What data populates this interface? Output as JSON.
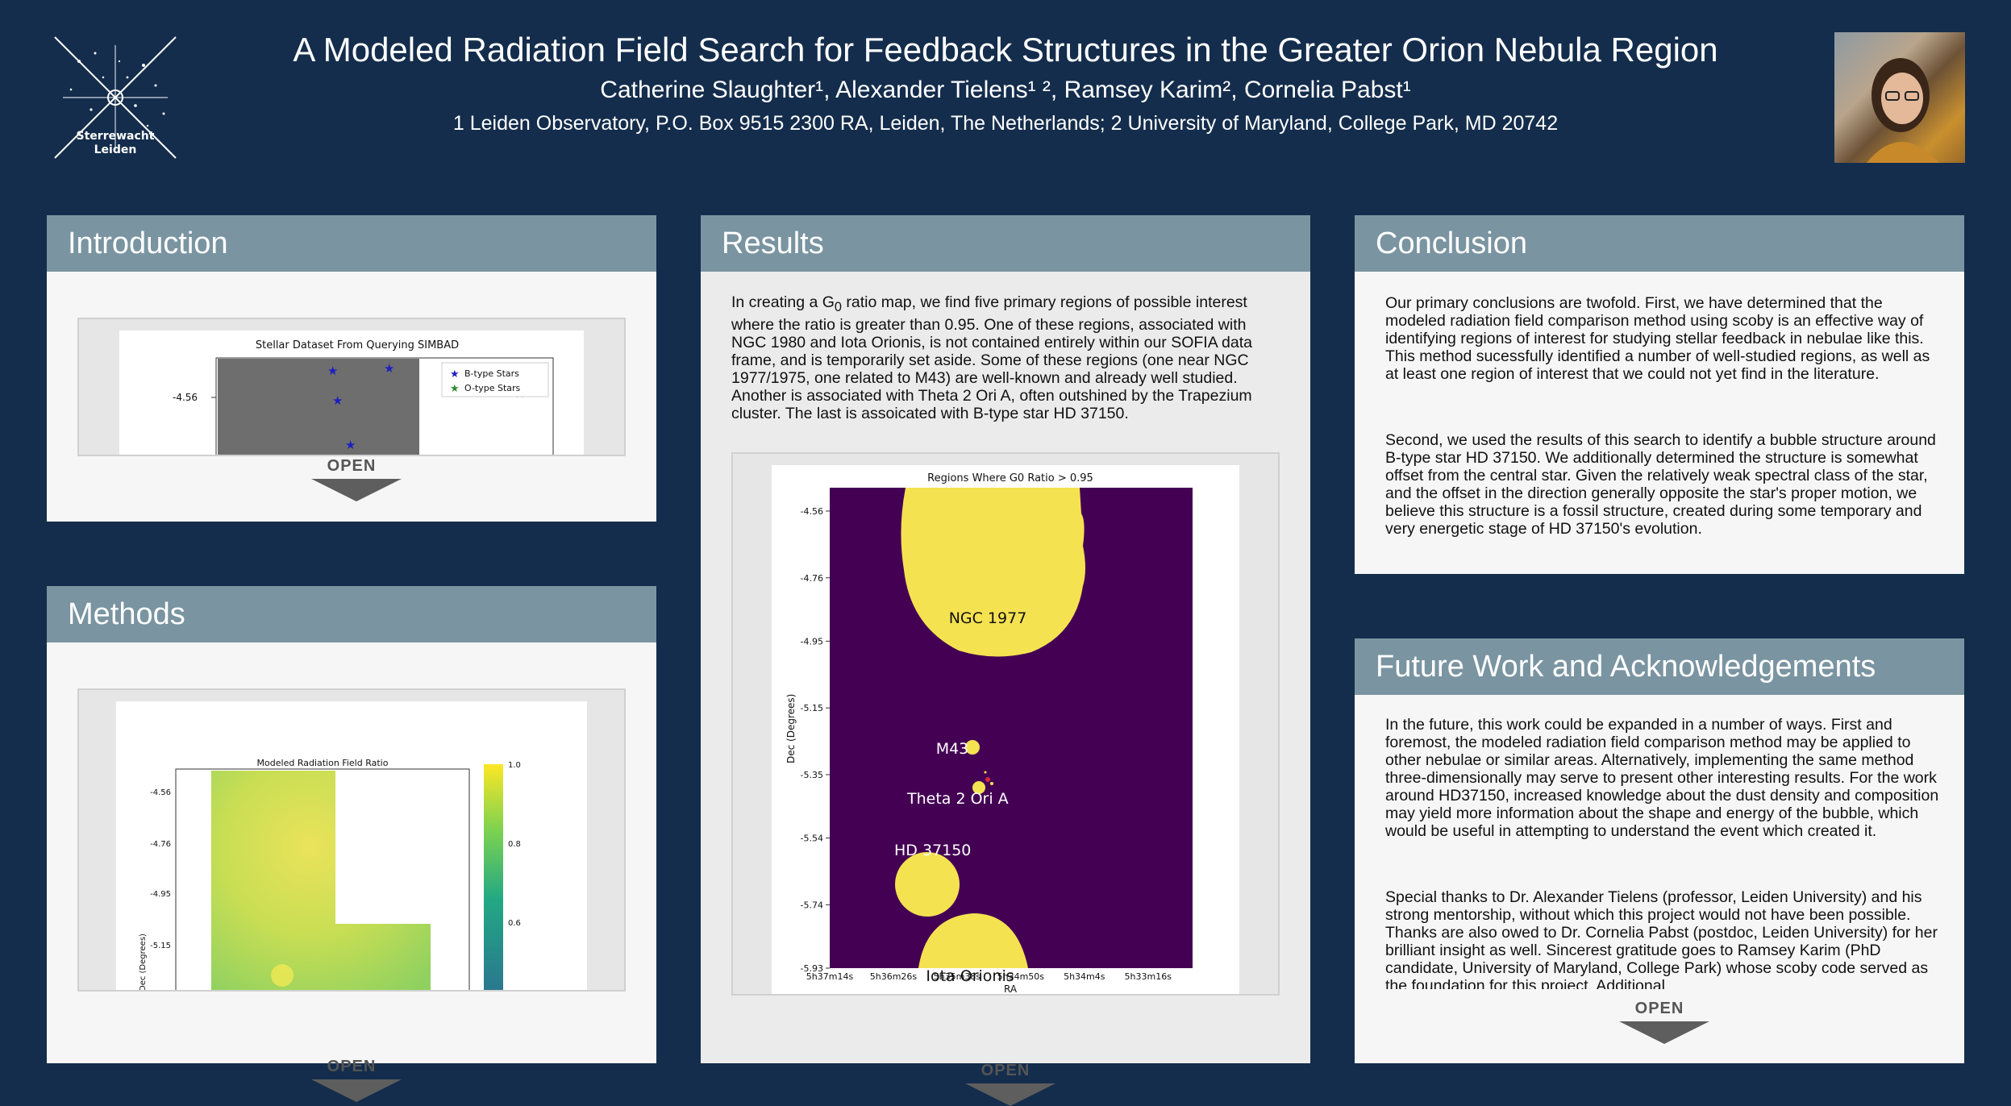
{
  "header": {
    "title": "A Modeled Radiation Field Search for Feedback Structures in the Greater Orion Nebula Region",
    "authors": "Catherine Slaughter¹, Alexander Tielens¹ ², Ramsey Karim², Cornelia Pabst¹",
    "affiliations": "1 Leiden Observatory, P.O. Box 9515 2300 RA, Leiden, The Netherlands; 2 University of Maryland, College Park, MD 20742",
    "logo_text": [
      "Sterrewacht",
      "Leiden"
    ]
  },
  "introduction": {
    "heading": "Introduction",
    "open_label": "OPEN",
    "figure": {
      "title": "Stellar Dataset From Querying SIMBAD",
      "ytick": "-4.56",
      "legend": [
        "B-type Stars",
        "O-type Stars"
      ],
      "colors": {
        "b_star": "#1f1fbf",
        "o_star": "#2e8b2e"
      }
    }
  },
  "methods": {
    "heading": "Methods",
    "open_label": "OPEN",
    "figure": {
      "title": "Modeled Radiation Field Ratio",
      "ylabel": "Dec (Degrees)",
      "yticks": [
        "-4.56",
        "-4.76",
        "-4.95",
        "-5.15"
      ],
      "colorbar_ticks": [
        "1.0",
        "0.8",
        "0.6"
      ]
    }
  },
  "results": {
    "heading": "Results",
    "text_pre": "In creating a G",
    "text_sub": "0",
    "text_post": " ratio map, we find five primary regions of possible interest where the ratio is greater than 0.95. One of these regions, associated with NGC 1980 and Iota Orionis, is not contained entirely within our SOFIA data frame, and is temporarily set aside. Some of these regions (one near NGC 1977/1975, one related to M43) are well-known and already well studied. Another is associated with Theta 2 Ori A, often outshined by the Trapezium cluster. The last is assoicated with B-type star HD 37150.",
    "open_label": "OPEN"
  },
  "chart_data": {
    "type": "heatmap",
    "title": "Regions Where G0 Ratio > 0.95",
    "xlabel": "RA",
    "ylabel": "Dec (Degrees)",
    "x_tick_labels": [
      "5h37m14s",
      "5h36m26s",
      "5h35m38s",
      "5h34m50s",
      "5h34m4s",
      "5h33m16s"
    ],
    "y_tick_labels": [
      "-4.56",
      "-4.76",
      "-4.95",
      "-5.15",
      "-5.35",
      "-5.54",
      "-5.74",
      "-5.93"
    ],
    "ylim": [
      -5.93,
      -4.49
    ],
    "annotations": [
      "NGC 1977",
      "M43",
      "Theta 2 Ori A",
      "HD 37150",
      "Iota Orionis"
    ],
    "colors": {
      "background": "#440154",
      "region": "#f5e251",
      "star": "#d7263d"
    }
  },
  "conclusion": {
    "heading": "Conclusion",
    "p1": "Our primary conclusions are twofold. First, we have determined that the modeled radiation field comparison method using scoby is an effective way of identifying regions of interest for studying stellar feedback in nebulae like this. This method sucessfully identified a number of well-studied regions, as well as at least one region of interest that we could not yet find in the literature.",
    "p2": "Second, we used the results of this search to identify a bubble structure around B-type star HD 37150. We additionally determined the structure is somewhat offset from the central star. Given the relatively weak spectral class of the star, and the offset in the direction generally opposite the star's proper motion, we believe this structure is a fossil structure, created during some temporary and very energetic stage of HD 37150's evolution."
  },
  "future": {
    "heading": "Future Work and Acknowledgements",
    "p1": "In the future, this work could be expanded in a number of ways. First and foremost, the modeled radiation field comparison method may be applied to other nebulae or similar areas. Alternatively, implementing the same method three-dimensionally may serve to present other interesting results. For the work around HD37150, increased knowledge about the dust density and composition may yield more information about the shape and energy of the bubble, which would be useful in attempting to understand the event which created it.",
    "p2": "Special thanks to Dr. Alexander Tielens (professor, Leiden University) and his strong mentorship, without which this project would not have been possible. Thanks are also owed to Dr. Cornelia Pabst (postdoc, Leiden University) for her brilliant insight as well. Sincerest gratitude goes to Ramsey Karim (PhD candidate, University of Maryland, College Park) whose scoby code served as the foundation for this project. Additional",
    "open_label": "OPEN"
  }
}
